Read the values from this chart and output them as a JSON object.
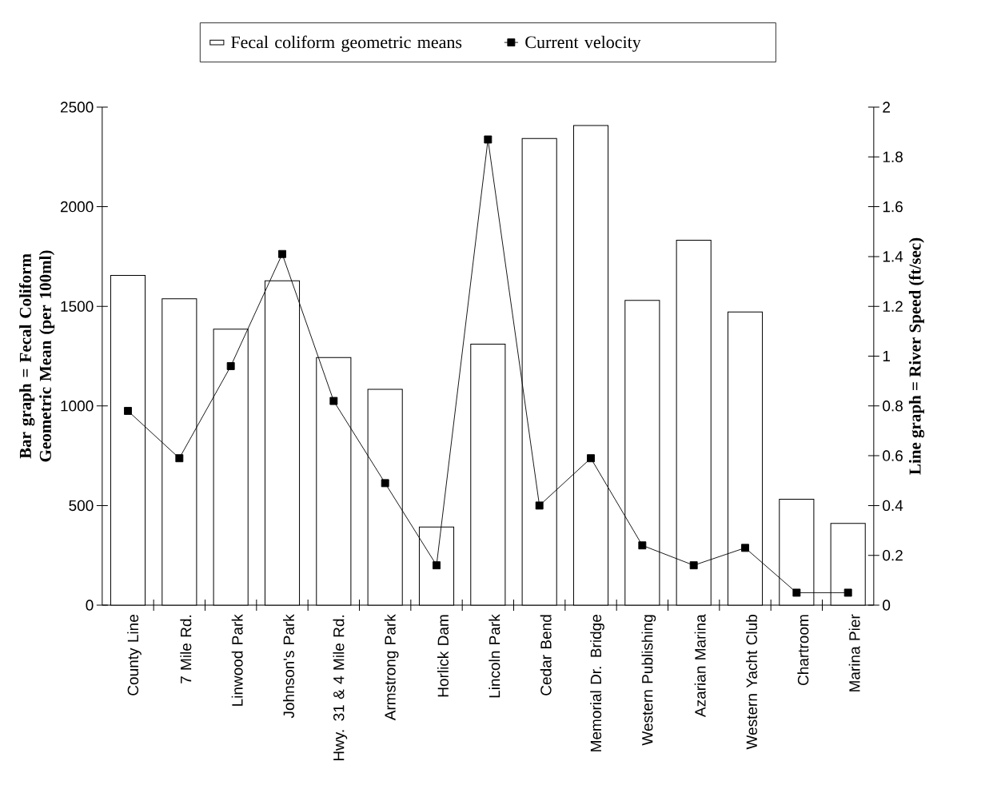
{
  "chart_data": {
    "type": "bar",
    "categories": [
      "County Line",
      "7 Mile Rd.",
      "Linwood Park",
      "Johnson's Park",
      "Hwy. 31 & 4 Mile Rd.",
      "Armstrong Park",
      "Horlick Dam",
      "Lincoln Park",
      "Cedar Bend",
      "Memorial Dr. Bridge",
      "Western Publishing",
      "Azarian Marina",
      "Western Yacht Club",
      "Chartroom",
      "Marina Pier"
    ],
    "series": [
      {
        "name": "Fecal coliform geometric means",
        "color": "#ffffff",
        "values": [
          1655,
          1538,
          1385,
          1628,
          1243,
          1083,
          392,
          1310,
          2342,
          2408,
          1530,
          1832,
          1472,
          532,
          410
        ]
      },
      {
        "name": "Current velocity",
        "type": "line",
        "axis": "y2",
        "color": "#000000",
        "marker": "square",
        "values": [
          0.78,
          0.59,
          0.96,
          1.41,
          0.82,
          0.49,
          0.16,
          1.87,
          0.4,
          0.59,
          0.24,
          0.16,
          0.23,
          0.05,
          0.05
        ]
      }
    ],
    "ylabel": "Bar graph = Fecal Coliform Geometric Mean (per 100ml)",
    "y2label": "Line graph = River Speed (ft/sec)",
    "ylim": [
      0,
      2500
    ],
    "yticks": [
      0,
      500,
      1000,
      1500,
      2000,
      2500
    ],
    "y2lim": [
      0,
      2
    ],
    "y2ticks": [
      0,
      0.2,
      0.4,
      0.6,
      0.8,
      1,
      1.2,
      1.4,
      1.6,
      1.8,
      2
    ],
    "legend": "top"
  }
}
